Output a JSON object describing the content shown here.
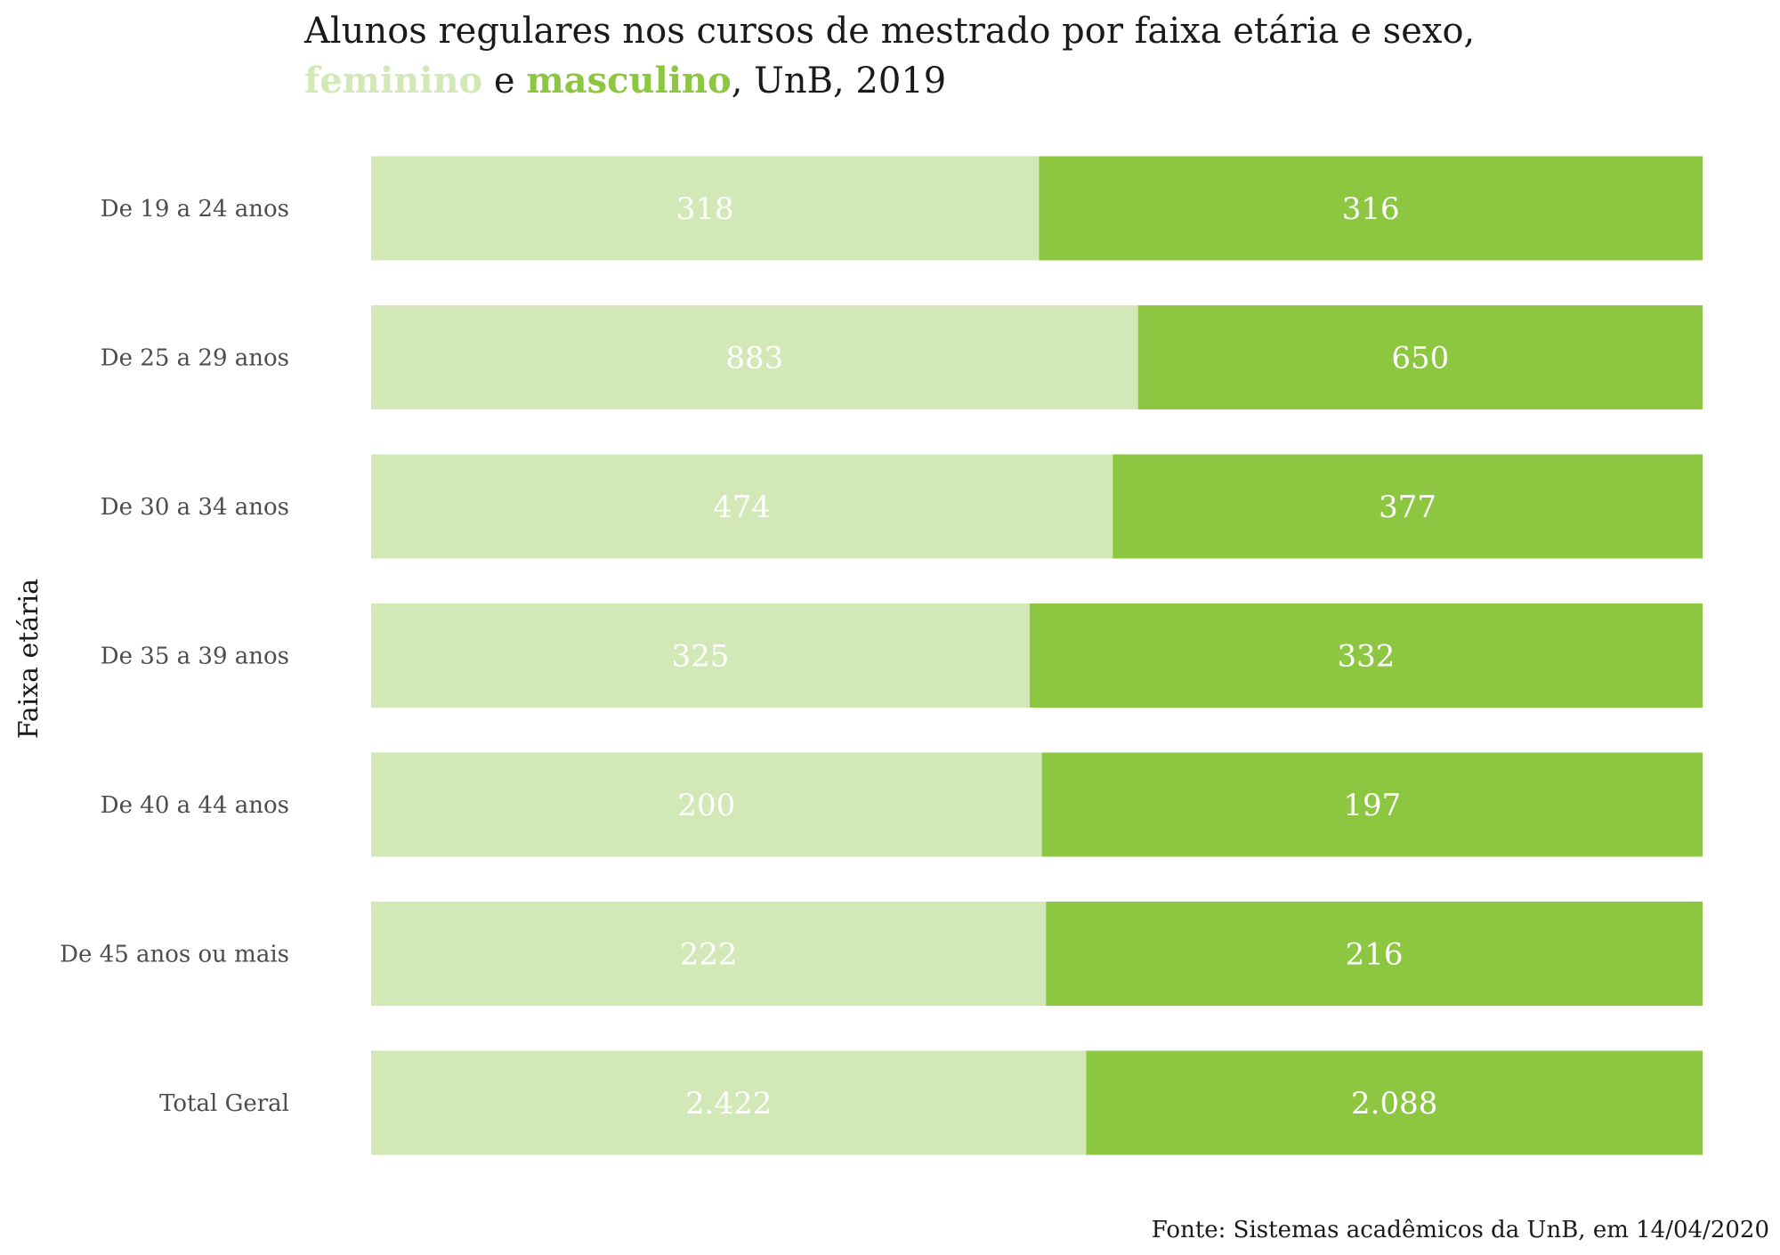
{
  "chart_data": {
    "type": "bar",
    "orientation": "horizontal",
    "stacked": "percent",
    "title": {
      "line1": "Alunos regulares nos cursos de mestrado por faixa etária e sexo,",
      "line2_female": "feminino",
      "line2_connector": " e ",
      "line2_male": "masculino",
      "line2_suffix": ", UnB, 2019"
    },
    "ylabel": "Faixa etária",
    "xlabel": "",
    "caption": "Fonte: Sistemas acadêmicos da UnB, em 14/04/2020",
    "categories": [
      "De 19 a 24 anos",
      "De 25 a 29 anos",
      "De 30 a 34 anos",
      "De 35 a 39 anos",
      "De 40 a 44 anos",
      "De 45 anos ou mais",
      "Total Geral"
    ],
    "series": [
      {
        "name": "feminino",
        "color": "#d2e8b6",
        "values": [
          318,
          883,
          474,
          325,
          200,
          222,
          2422
        ],
        "labels": [
          "318",
          "883",
          "474",
          "325",
          "200",
          "222",
          "2.422"
        ]
      },
      {
        "name": "masculino",
        "color": "#8dc640",
        "values": [
          316,
          650,
          377,
          332,
          197,
          216,
          2088
        ],
        "labels": [
          "316",
          "650",
          "377",
          "332",
          "197",
          "216",
          "2.088"
        ]
      }
    ],
    "grid": false,
    "legend": "none"
  }
}
